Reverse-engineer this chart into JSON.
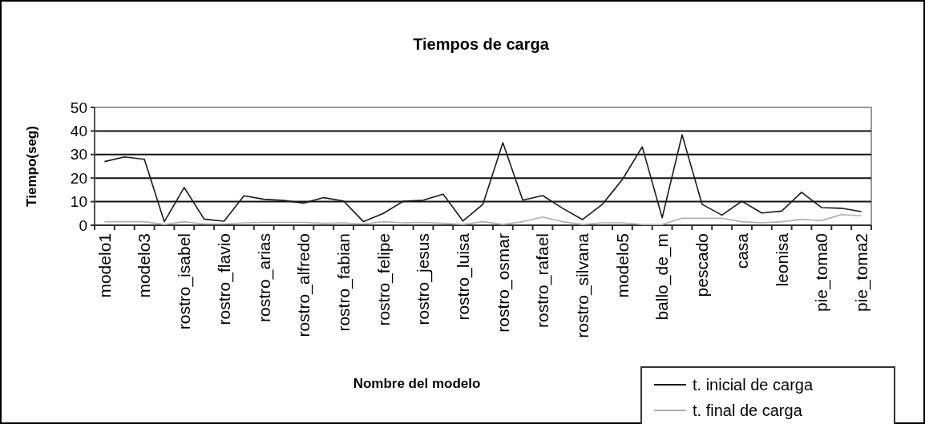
{
  "chart_data": {
    "type": "line",
    "title": "Tiempos de carga",
    "xlabel": "Nombre del modelo",
    "ylabel": "Tiempo(seg)",
    "categories": [
      "modelo1",
      null,
      "modelo3",
      null,
      "rostro_isabel",
      null,
      "rostro_flavio",
      null,
      "rostro_arias",
      null,
      "rostro_alfredo",
      null,
      "rostro_fabian",
      null,
      "rostro_felipe",
      null,
      "rostro_jesus",
      null,
      "rostro_luisa",
      null,
      "rostro_osmar",
      null,
      "rostro_rafael",
      null,
      "rostro_silvana",
      null,
      "modelo5",
      null,
      "ballo_de_m",
      null,
      "pescado",
      null,
      "casa",
      null,
      "leonisa",
      null,
      "pie_toma0",
      null,
      "pie_toma2"
    ],
    "series": [
      {
        "name": "t. inicial de carga",
        "color": "#1a1a1a",
        "values": [
          27,
          29,
          28,
          1.5,
          16,
          2.6,
          1.7,
          12.5,
          11,
          10.5,
          9.4,
          11.7,
          10.3,
          1.5,
          5,
          10.2,
          10.6,
          13.2,
          1.8,
          8.9,
          35,
          10.6,
          12.6,
          7.2,
          2.4,
          8.9,
          19.4,
          33.3,
          3.2,
          38.4,
          8.9,
          4.3,
          10.2,
          5.2,
          6,
          14,
          7.5,
          7.2,
          5.8
        ]
      },
      {
        "name": "t. final de carga",
        "color": "#b0b0b0",
        "values": [
          1.5,
          1.5,
          1.5,
          0.3,
          1.5,
          0.5,
          0.5,
          1,
          1.2,
          1.2,
          1.2,
          0.8,
          1,
          0.5,
          1.5,
          1,
          1.2,
          0.8,
          0.3,
          1.5,
          0.3,
          1.5,
          3.5,
          1.5,
          0.3,
          1,
          1,
          0.3,
          0.3,
          3,
          3,
          3,
          1.5,
          1,
          1.5,
          2.5,
          2,
          4.5,
          4
        ]
      }
    ],
    "ylim": [
      0,
      50
    ],
    "yticks": [
      0,
      10,
      20,
      30,
      40,
      50
    ],
    "grid": "y",
    "legend": "bottom right",
    "marker": "none",
    "line_style": "solid"
  }
}
